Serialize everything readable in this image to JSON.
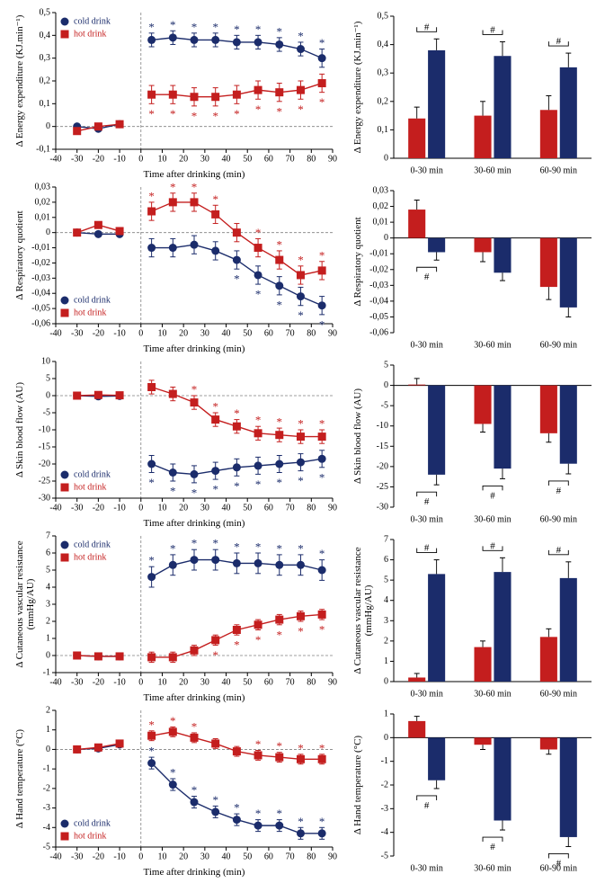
{
  "global": {
    "font": "Times New Roman",
    "bg": "#ffffff",
    "axisColor": "#000000",
    "dashedColor": "#808080",
    "coldColor": "#1b2c6b",
    "hotColor": "#c41e1e",
    "legendCold": "cold drink",
    "legendHot": "hot drink",
    "xLabelLine": "Time after drinking (min)",
    "barCats": [
      "0-30 min",
      "30-60 min",
      "60-90 min"
    ],
    "lineXTicks": [
      -40,
      -30,
      -20,
      -10,
      0,
      10,
      20,
      30,
      40,
      50,
      60,
      70,
      80,
      90
    ],
    "baselineX": [
      -30,
      -20,
      -10
    ],
    "postX": [
      5,
      15,
      25,
      35,
      45,
      55,
      65,
      75,
      85
    ],
    "markerSize": 4.5,
    "lineWidth": 1.4,
    "errCap": 3,
    "axisFontSize": 10,
    "labelFontSize": 11,
    "legendFontSize": 10
  },
  "rows": [
    {
      "yLabel": "Δ Energy expenditure (KJ.min⁻¹)",
      "line": {
        "ylim": [
          -0.1,
          0.5
        ],
        "yticks": [
          -0.1,
          0,
          0.1,
          0.2,
          0.3,
          0.4,
          0.5
        ],
        "ytickLabels": [
          "-0,1",
          "0",
          "0,1",
          "0,2",
          "0,3",
          "0,4",
          "0,5"
        ],
        "cold": {
          "baseline": [
            0.0,
            -0.01,
            0.01
          ],
          "post": [
            0.38,
            0.39,
            0.38,
            0.38,
            0.37,
            0.37,
            0.36,
            0.34,
            0.3
          ],
          "errPost": [
            0.03,
            0.03,
            0.03,
            0.03,
            0.03,
            0.03,
            0.03,
            0.03,
            0.04
          ],
          "sigPost": [
            1,
            1,
            1,
            1,
            1,
            1,
            1,
            1,
            1
          ],
          "sigAbove": true
        },
        "hot": {
          "baseline": [
            -0.02,
            0.0,
            0.01
          ],
          "post": [
            0.14,
            0.14,
            0.13,
            0.13,
            0.14,
            0.16,
            0.15,
            0.16,
            0.19
          ],
          "errPost": [
            0.04,
            0.04,
            0.04,
            0.04,
            0.04,
            0.04,
            0.04,
            0.04,
            0.04
          ],
          "sigPost": [
            1,
            1,
            1,
            1,
            1,
            1,
            1,
            1,
            1
          ],
          "sigAbove": false
        },
        "legendPos": "top"
      },
      "bars": {
        "ylim": [
          0,
          0.5
        ],
        "yticks": [
          0,
          0.1,
          0.2,
          0.3,
          0.4,
          0.5
        ],
        "ytickLabels": [
          "0",
          "0,1",
          "0,2",
          "0,3",
          "0,4",
          "0,5"
        ],
        "hot": {
          "vals": [
            0.14,
            0.15,
            0.17
          ],
          "err": [
            0.04,
            0.05,
            0.05
          ]
        },
        "cold": {
          "vals": [
            0.38,
            0.36,
            0.32
          ],
          "err": [
            0.04,
            0.05,
            0.05
          ]
        },
        "sigBrackets": [
          1,
          1,
          1
        ],
        "bracketAbove": true
      }
    },
    {
      "yLabel": "Δ Respiratory quotient",
      "line": {
        "ylim": [
          -0.06,
          0.03
        ],
        "yticks": [
          -0.06,
          -0.05,
          -0.04,
          -0.03,
          -0.02,
          -0.01,
          0,
          0.01,
          0.02,
          0.03
        ],
        "ytickLabels": [
          "-0,06",
          "-0,05",
          "-0,04",
          "-0,03",
          "-0,02",
          "-0,01",
          "0",
          "0,01",
          "0,02",
          "0,03"
        ],
        "cold": {
          "baseline": [
            0.0,
            -0.001,
            -0.001
          ],
          "post": [
            -0.01,
            -0.01,
            -0.008,
            -0.012,
            -0.018,
            -0.028,
            -0.035,
            -0.042,
            -0.048
          ],
          "errPost": [
            0.006,
            0.006,
            0.006,
            0.006,
            0.006,
            0.006,
            0.006,
            0.006,
            0.006
          ],
          "sigPost": [
            0,
            0,
            0,
            0,
            1,
            1,
            1,
            1,
            1
          ],
          "sigAbove": false
        },
        "hot": {
          "baseline": [
            0.0,
            0.005,
            0.001
          ],
          "post": [
            0.014,
            0.02,
            0.02,
            0.012,
            0.0,
            -0.01,
            -0.018,
            -0.028,
            -0.025
          ],
          "errPost": [
            0.006,
            0.006,
            0.006,
            0.006,
            0.006,
            0.006,
            0.006,
            0.006,
            0.006
          ],
          "sigPost": [
            1,
            1,
            1,
            1,
            0,
            1,
            1,
            1,
            1
          ],
          "sigAbove": true
        },
        "legendPos": "bottom"
      },
      "bars": {
        "ylim": [
          -0.06,
          0.03
        ],
        "yticks": [
          -0.06,
          -0.05,
          -0.04,
          -0.03,
          -0.02,
          -0.01,
          0,
          0.01,
          0.02,
          0.03
        ],
        "ytickLabels": [
          "-0,06",
          "-0,05",
          "-0,04",
          "-0,03",
          "-0,02",
          "-0,01",
          "0",
          "0,01",
          "0,02",
          "0,03"
        ],
        "hot": {
          "vals": [
            0.018,
            -0.009,
            -0.031
          ],
          "err": [
            0.006,
            0.006,
            0.008
          ]
        },
        "cold": {
          "vals": [
            -0.009,
            -0.022,
            -0.044
          ],
          "err": [
            0.005,
            0.005,
            0.006
          ]
        },
        "sigBrackets": [
          1,
          0,
          0
        ],
        "bracketAbove": false
      }
    },
    {
      "yLabel": "Δ Skin blood flow (AU)",
      "line": {
        "ylim": [
          -30,
          10
        ],
        "yticks": [
          -30,
          -25,
          -20,
          -15,
          -10,
          -5,
          0,
          5,
          10
        ],
        "ytickLabels": [
          "-30",
          "-25",
          "-20",
          "-15",
          "-10",
          "-5",
          "0",
          "5",
          "10"
        ],
        "cold": {
          "baseline": [
            0,
            -0.2,
            -0.1
          ],
          "post": [
            -20,
            -22.5,
            -23,
            -22,
            -21,
            -20.5,
            -20,
            -19.5,
            -18.5
          ],
          "errPost": [
            2.5,
            2.5,
            2.5,
            2.5,
            2.5,
            2.5,
            2.5,
            2.5,
            2.5
          ],
          "sigPost": [
            1,
            1,
            1,
            1,
            1,
            1,
            1,
            1,
            1
          ],
          "sigAbove": false
        },
        "hot": {
          "baseline": [
            0,
            0.2,
            0.1
          ],
          "post": [
            2.5,
            0.5,
            -2,
            -7,
            -9,
            -11,
            -11.5,
            -12,
            -12
          ],
          "errPost": [
            2,
            2,
            2,
            2,
            2,
            2,
            2,
            2,
            2
          ],
          "sigPost": [
            0,
            0,
            1,
            1,
            1,
            1,
            1,
            1,
            1
          ],
          "sigAbove": true
        },
        "legendPos": "bottom"
      },
      "bars": {
        "ylim": [
          -30,
          5
        ],
        "yticks": [
          -30,
          -25,
          -20,
          -15,
          -10,
          -5,
          0,
          5
        ],
        "ytickLabels": [
          "-30",
          "-25",
          "-20",
          "-15",
          "-10",
          "-5",
          "0",
          "5"
        ],
        "hot": {
          "vals": [
            0.2,
            -9.5,
            -11.8
          ],
          "err": [
            1.5,
            2,
            2.2
          ]
        },
        "cold": {
          "vals": [
            -22,
            -20.5,
            -19.3
          ],
          "err": [
            2.5,
            2.5,
            2.5
          ]
        },
        "sigBrackets": [
          1,
          1,
          1
        ],
        "bracketAbove": false
      }
    },
    {
      "yLabel": "Δ Cutaneous vascular resistance (mmHg/AU)",
      "yLabelTwoLine": [
        "Δ Cutaneous vascular resistance",
        "(mmHg/AU)"
      ],
      "line": {
        "ylim": [
          -1,
          7
        ],
        "yticks": [
          -1,
          0,
          1,
          2,
          3,
          4,
          5,
          6,
          7
        ],
        "ytickLabels": [
          "-1",
          "0",
          "1",
          "2",
          "3",
          "4",
          "5",
          "6",
          "7"
        ],
        "cold": {
          "baseline": [
            0,
            -0.05,
            -0.05
          ],
          "post": [
            4.6,
            5.3,
            5.6,
            5.6,
            5.4,
            5.4,
            5.3,
            5.3,
            5.0
          ],
          "errPost": [
            0.6,
            0.6,
            0.6,
            0.6,
            0.6,
            0.6,
            0.6,
            0.6,
            0.6
          ],
          "sigPost": [
            1,
            1,
            1,
            1,
            1,
            1,
            1,
            1,
            1
          ],
          "sigAbove": true
        },
        "hot": {
          "baseline": [
            0,
            -0.05,
            -0.05
          ],
          "post": [
            -0.1,
            -0.1,
            0.3,
            0.9,
            1.5,
            1.8,
            2.1,
            2.3,
            2.4
          ],
          "errPost": [
            0.3,
            0.3,
            0.3,
            0.3,
            0.3,
            0.3,
            0.3,
            0.3,
            0.3
          ],
          "sigPost": [
            0,
            0,
            0,
            1,
            1,
            1,
            1,
            1,
            1
          ],
          "sigAbove": false
        },
        "legendPos": "top"
      },
      "bars": {
        "ylim": [
          0,
          7
        ],
        "yticks": [
          0,
          1,
          2,
          3,
          4,
          5,
          6,
          7
        ],
        "ytickLabels": [
          "0",
          "1",
          "2",
          "3",
          "4",
          "5",
          "6",
          "7"
        ],
        "hot": {
          "vals": [
            0.2,
            1.7,
            2.2
          ],
          "err": [
            0.2,
            0.3,
            0.4
          ]
        },
        "cold": {
          "vals": [
            5.3,
            5.4,
            5.1
          ],
          "err": [
            0.7,
            0.7,
            0.8
          ]
        },
        "sigBrackets": [
          1,
          1,
          1
        ],
        "bracketAbove": true
      }
    },
    {
      "yLabel": "Δ Hand temperature (°C)",
      "line": {
        "ylim": [
          -5,
          2
        ],
        "yticks": [
          -5,
          -4,
          -3,
          -2,
          -1,
          0,
          1,
          2
        ],
        "ytickLabels": [
          "-5",
          "-4",
          "-3",
          "-2",
          "-1",
          "0",
          "1",
          "2"
        ],
        "cold": {
          "baseline": [
            0,
            0.05,
            0.25
          ],
          "post": [
            -0.7,
            -1.8,
            -2.7,
            -3.2,
            -3.6,
            -3.9,
            -3.9,
            -4.3,
            -4.3
          ],
          "errPost": [
            0.3,
            0.3,
            0.3,
            0.3,
            0.3,
            0.3,
            0.3,
            0.3,
            0.3
          ],
          "sigPost": [
            1,
            1,
            1,
            1,
            1,
            1,
            1,
            1,
            1
          ],
          "sigAbove": true
        },
        "hot": {
          "baseline": [
            0,
            0.1,
            0.3
          ],
          "post": [
            0.7,
            0.9,
            0.6,
            0.3,
            -0.1,
            -0.3,
            -0.4,
            -0.5,
            -0.5
          ],
          "errPost": [
            0.25,
            0.25,
            0.25,
            0.25,
            0.25,
            0.25,
            0.25,
            0.25,
            0.25
          ],
          "sigPost": [
            1,
            1,
            1,
            0,
            0,
            1,
            1,
            1,
            1
          ],
          "sigAbove": true
        },
        "legendPos": "bottom"
      },
      "bars": {
        "ylim": [
          -5,
          1
        ],
        "yticks": [
          -5,
          -4,
          -3,
          -2,
          -1,
          0,
          1
        ],
        "ytickLabels": [
          "-5",
          "-4",
          "-3",
          "-2",
          "-1",
          "0",
          "1"
        ],
        "hot": {
          "vals": [
            0.7,
            -0.3,
            -0.5
          ],
          "err": [
            0.2,
            0.2,
            0.2
          ]
        },
        "cold": {
          "vals": [
            -1.8,
            -3.5,
            -4.2
          ],
          "err": [
            0.35,
            0.4,
            0.4
          ]
        },
        "sigBrackets": [
          1,
          1,
          1
        ],
        "bracketAbove": false
      }
    }
  ]
}
